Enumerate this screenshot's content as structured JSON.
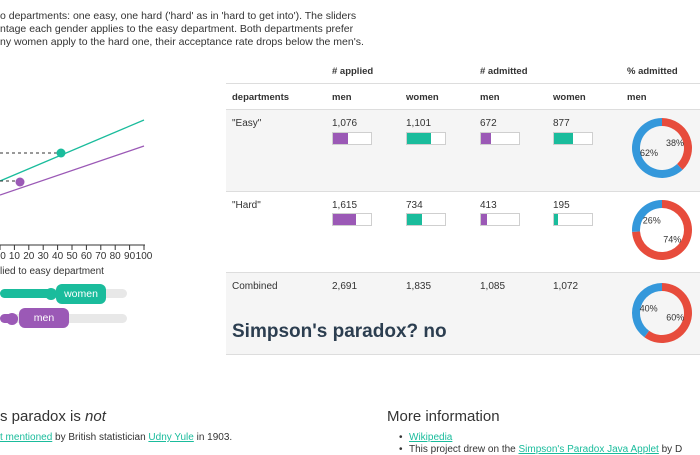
{
  "intro": {
    "line1": "o departments: one easy, one hard ('hard' as in 'hard to get into'). The sliders",
    "line2": "ntage each gender applies to the easy department. Both departments prefer",
    "line3": "ny women apply to the hard one, their acceptance rate drops below the men's."
  },
  "chart": {
    "x_ticks": [
      "0",
      "10",
      "20",
      "30",
      "40",
      "50",
      "60",
      "70",
      "80",
      "90",
      "100"
    ],
    "x_axis_label": "lied to easy department",
    "colors": {
      "men": "#9b59b6",
      "women": "#1abc9c"
    },
    "women_point_x": 60,
    "men_point_x": 40
  },
  "sliders": {
    "women": {
      "label": "women",
      "value": 60,
      "color": "#1abc9c"
    },
    "men": {
      "label": "men",
      "value": 40,
      "color": "#9b59b6"
    }
  },
  "table": {
    "group_headers": {
      "applied": "# applied",
      "admitted": "# admitted",
      "pct_admitted": "% admitted"
    },
    "col_headers": {
      "departments": "departments",
      "men": "men",
      "women": "women"
    },
    "rows": [
      {
        "name": "\"Easy\"",
        "applied_men": "1,076",
        "applied_women": "1,101",
        "admitted_men": "672",
        "admitted_women": "877",
        "bar_applied_men": 0.4,
        "bar_applied_women": 0.62,
        "bar_admitted_men": 0.25,
        "bar_admitted_women": 0.5,
        "donut": {
          "red_label": "38%",
          "blue_label": "62%",
          "red_fraction": 0.38
        }
      },
      {
        "name": "\"Hard\"",
        "applied_men": "1,615",
        "applied_women": "734",
        "admitted_men": "413",
        "admitted_women": "195",
        "bar_applied_men": 0.6,
        "bar_applied_women": 0.4,
        "bar_admitted_men": 0.15,
        "bar_admitted_women": 0.1,
        "donut": {
          "red_label": "74%",
          "blue_label": "26%",
          "red_fraction": 0.74
        }
      },
      {
        "name": "Combined",
        "applied_men": "2,691",
        "applied_women": "1,835",
        "admitted_men": "1,085",
        "admitted_women": "1,072",
        "donut": {
          "red_label": "60%",
          "blue_label": "40%",
          "red_fraction": 0.6
        }
      }
    ],
    "verdict": "Simpson's paradox? no",
    "donut_colors": {
      "red": "#e74c3c",
      "blue": "#3498db"
    }
  },
  "bottom": {
    "left_title_pre": "s paradox is ",
    "left_title_em": "not",
    "left_link1": "t mentioned",
    "left_text1": " by British statistician ",
    "left_link2": "Udny Yule",
    "left_text2": " in 1903.",
    "right_title": "More information",
    "right_link1": "Wikipedia",
    "right_text2_pre": "This project drew on the ",
    "right_link2": "Simpson's Paradox Java Applet",
    "right_text2_post": " by D"
  }
}
